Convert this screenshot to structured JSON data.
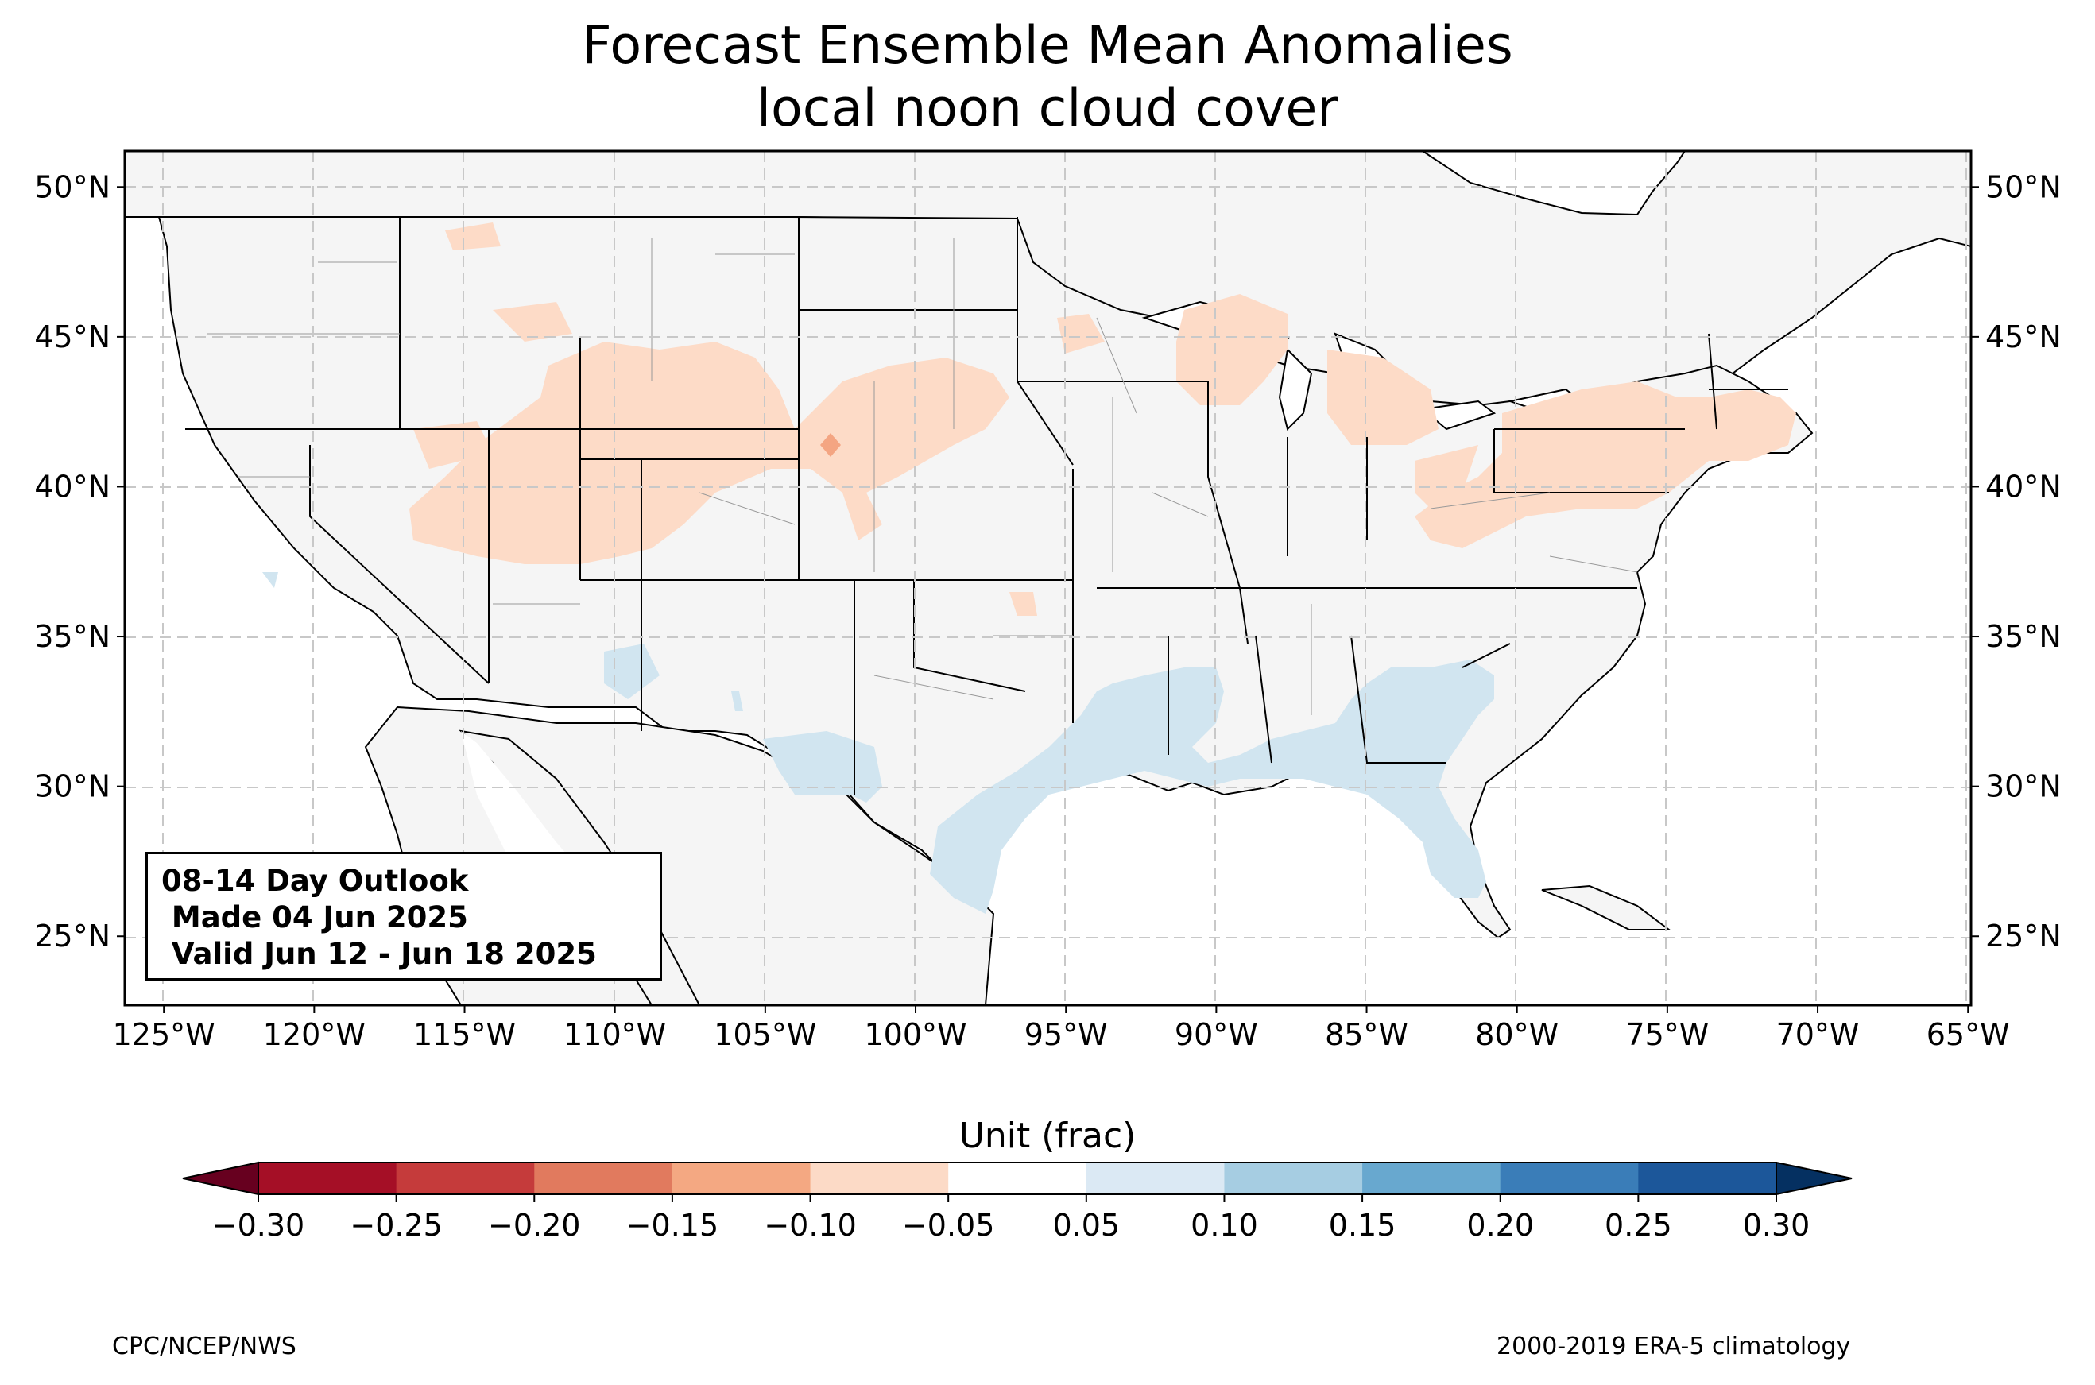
{
  "title": {
    "line1": "Forecast Ensemble Mean Anomalies",
    "line2": "local noon cloud cover"
  },
  "map": {
    "lon_range": [
      -126.3,
      -64.9
    ],
    "lat_range": [
      22.7,
      51.2
    ],
    "lon_ticks": [
      "125°W",
      "120°W",
      "115°W",
      "110°W",
      "105°W",
      "100°W",
      "95°W",
      "90°W",
      "85°W",
      "80°W",
      "75°W",
      "70°W",
      "65°W"
    ],
    "lat_ticks": [
      "25°N",
      "30°N",
      "35°N",
      "40°N",
      "45°N",
      "50°N"
    ],
    "gridlines": true,
    "land_color": "#f5f5f5",
    "ocean_color": "#ffffff",
    "anomaly_colors": {
      "positive_light": "#fddbc7",
      "positive_medium": "#f4a582",
      "negative_light": "#d1e5f0"
    }
  },
  "info_box": {
    "line1": "08-14 Day Outlook",
    "line2": " Made 04 Jun 2025",
    "line3": " Valid Jun 12 - Jun 18 2025"
  },
  "colorbar": {
    "label": "Unit (frac)",
    "ticks": [
      "−0.30",
      "−0.25",
      "−0.20",
      "−0.15",
      "−0.10",
      "−0.05",
      "0.05",
      "0.10",
      "0.15",
      "0.20",
      "0.25",
      "0.30"
    ],
    "colors": [
      "#a50f26",
      "#c53b3b",
      "#e17a5e",
      "#f4a882",
      "#fcdac6",
      "#ffffff",
      "#dbe9f4",
      "#a6cde2",
      "#68a8cf",
      "#3a7db8",
      "#1c579a"
    ],
    "under_color": "#67001f",
    "over_color": "#053061"
  },
  "footer": {
    "left": "CPC/NCEP/NWS",
    "right": "2000-2019 ERA-5 climatology"
  }
}
